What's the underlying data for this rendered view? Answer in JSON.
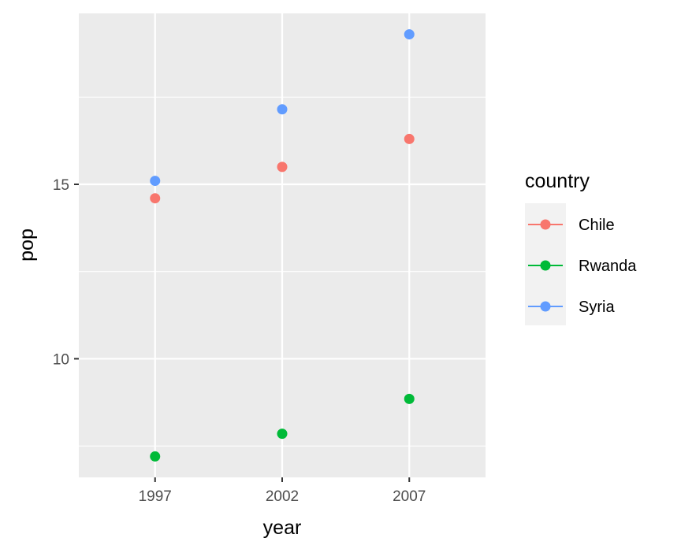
{
  "chart_data": {
    "type": "scatter",
    "xlabel": "year",
    "ylabel": "pop",
    "x": [
      1997,
      2002,
      2007
    ],
    "xticks": [
      1997,
      2002,
      2007
    ],
    "xlim": [
      1994,
      2010
    ],
    "yticks": [
      10,
      15
    ],
    "ylim": [
      6.6,
      19.9
    ],
    "grid": true,
    "legend": {
      "title": "country",
      "position": "right",
      "entries": [
        "Chile",
        "Rwanda",
        "Syria"
      ]
    },
    "series": [
      {
        "name": "Chile",
        "color": "#F8766D",
        "values": [
          14.6,
          15.5,
          16.3
        ]
      },
      {
        "name": "Rwanda",
        "color": "#00BA38",
        "values": [
          7.2,
          7.85,
          8.85
        ]
      },
      {
        "name": "Syria",
        "color": "#619CFF",
        "values": [
          15.1,
          17.15,
          19.3
        ]
      }
    ]
  }
}
